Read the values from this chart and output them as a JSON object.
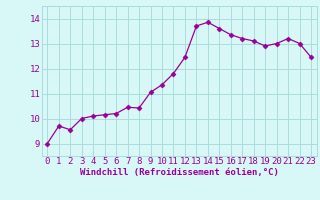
{
  "x": [
    0,
    1,
    2,
    3,
    4,
    5,
    6,
    7,
    8,
    9,
    10,
    11,
    12,
    13,
    14,
    15,
    16,
    17,
    18,
    19,
    20,
    21,
    22,
    23
  ],
  "y": [
    9.0,
    9.7,
    9.55,
    10.0,
    10.1,
    10.15,
    10.2,
    10.45,
    10.42,
    11.05,
    11.35,
    11.8,
    12.45,
    13.7,
    13.85,
    13.6,
    13.35,
    13.2,
    13.1,
    12.9,
    13.0,
    13.2,
    13.0,
    12.45
  ],
  "line_color": "#990099",
  "marker": "D",
  "marker_size": 2.5,
  "bg_color": "#d8f8f8",
  "grid_color": "#aadddd",
  "xlabel": "Windchill (Refroidissement éolien,°C)",
  "ylabel": "",
  "xlim": [
    -0.5,
    23.5
  ],
  "ylim": [
    8.5,
    14.5
  ],
  "yticks": [
    9,
    10,
    11,
    12,
    13,
    14
  ],
  "xticks": [
    0,
    1,
    2,
    3,
    4,
    5,
    6,
    7,
    8,
    9,
    10,
    11,
    12,
    13,
    14,
    15,
    16,
    17,
    18,
    19,
    20,
    21,
    22,
    23
  ],
  "axis_label_color": "#990099",
  "tick_color": "#990099",
  "font_size_xlabel": 6.5,
  "font_size_ticks": 6.5
}
